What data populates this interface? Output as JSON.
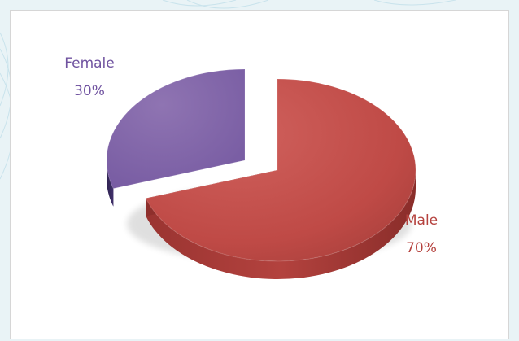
{
  "chart_data": {
    "type": "pie",
    "style": "3d-exploded",
    "slices": [
      {
        "name": "Male",
        "value": 70,
        "label": "70%",
        "color": "#c0504d"
      },
      {
        "name": "Female",
        "value": 30,
        "label": "30%",
        "color": "#8064a2"
      }
    ],
    "legend": "none"
  }
}
